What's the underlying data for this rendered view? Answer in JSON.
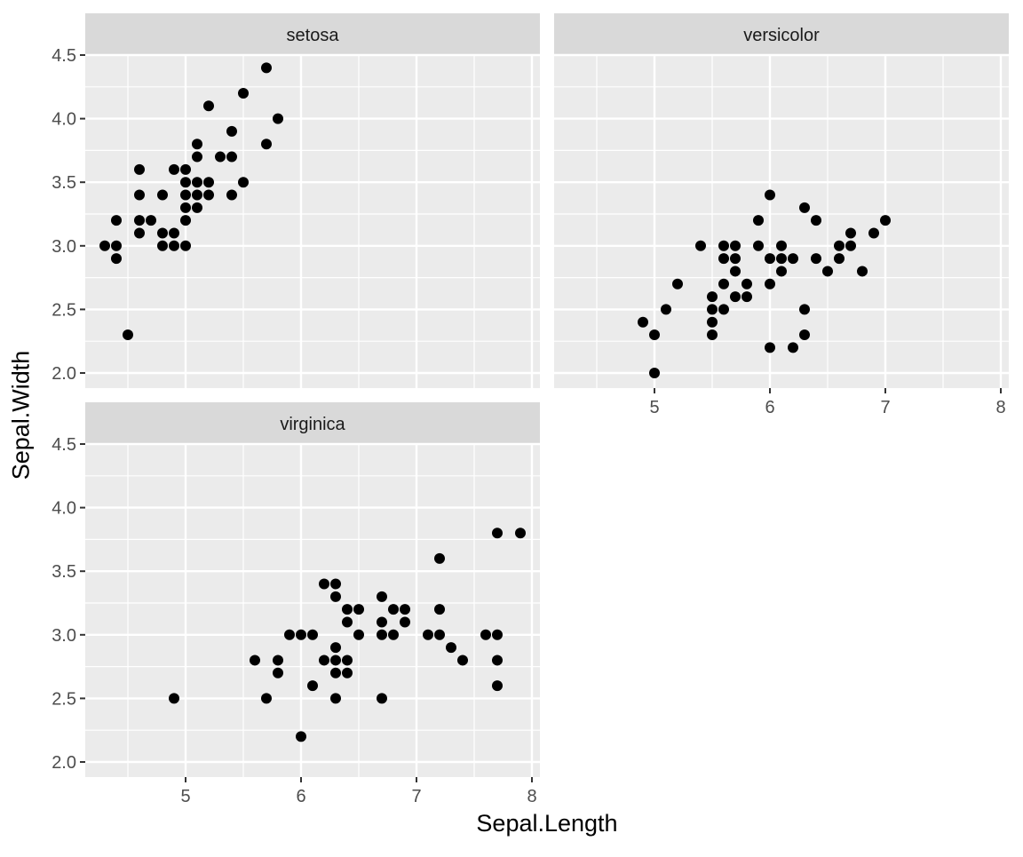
{
  "chart_data": {
    "type": "scatter",
    "title": "",
    "xlabel": "Sepal.Length",
    "ylabel": "Sepal.Width",
    "facet_by": "Species",
    "xlim": [
      4.13,
      8.07
    ],
    "ylim": [
      1.88,
      4.52
    ],
    "x_ticks": [
      5,
      6,
      7,
      8
    ],
    "y_ticks": [
      "2.0",
      "2.5",
      "3.0",
      "3.5",
      "4.0",
      "4.5"
    ],
    "grid": true,
    "point_color": "#000000",
    "panels": [
      {
        "strip": "setosa",
        "points": [
          [
            4.3,
            3.0
          ],
          [
            4.4,
            3.0
          ],
          [
            4.4,
            2.9
          ],
          [
            4.4,
            3.2
          ],
          [
            4.5,
            2.3
          ],
          [
            4.6,
            3.6
          ],
          [
            4.6,
            3.4
          ],
          [
            4.6,
            3.2
          ],
          [
            4.6,
            3.1
          ],
          [
            4.7,
            3.2
          ],
          [
            4.8,
            3.4
          ],
          [
            4.8,
            3.1
          ],
          [
            4.8,
            3.0
          ],
          [
            4.9,
            3.6
          ],
          [
            4.9,
            3.1
          ],
          [
            4.9,
            3.0
          ],
          [
            5.0,
            3.6
          ],
          [
            5.0,
            3.5
          ],
          [
            5.0,
            3.4
          ],
          [
            5.0,
            3.3
          ],
          [
            5.0,
            3.2
          ],
          [
            5.0,
            3.0
          ],
          [
            5.1,
            3.8
          ],
          [
            5.1,
            3.7
          ],
          [
            5.1,
            3.5
          ],
          [
            5.1,
            3.4
          ],
          [
            5.1,
            3.3
          ],
          [
            5.2,
            4.1
          ],
          [
            5.2,
            3.5
          ],
          [
            5.2,
            3.4
          ],
          [
            5.3,
            3.7
          ],
          [
            5.4,
            3.9
          ],
          [
            5.4,
            3.7
          ],
          [
            5.4,
            3.4
          ],
          [
            5.5,
            4.2
          ],
          [
            5.5,
            3.5
          ],
          [
            5.7,
            4.4
          ],
          [
            5.7,
            3.8
          ],
          [
            5.8,
            4.0
          ]
        ]
      },
      {
        "strip": "versicolor",
        "points": [
          [
            4.9,
            2.4
          ],
          [
            5.0,
            2.3
          ],
          [
            5.0,
            2.0
          ],
          [
            5.1,
            2.5
          ],
          [
            5.2,
            2.7
          ],
          [
            5.4,
            3.0
          ],
          [
            5.5,
            2.6
          ],
          [
            5.5,
            2.5
          ],
          [
            5.5,
            2.4
          ],
          [
            5.5,
            2.3
          ],
          [
            5.6,
            3.0
          ],
          [
            5.6,
            2.9
          ],
          [
            5.6,
            2.7
          ],
          [
            5.6,
            2.5
          ],
          [
            5.7,
            3.0
          ],
          [
            5.7,
            2.9
          ],
          [
            5.7,
            2.8
          ],
          [
            5.7,
            2.6
          ],
          [
            5.8,
            2.7
          ],
          [
            5.8,
            2.6
          ],
          [
            5.9,
            3.2
          ],
          [
            5.9,
            3.0
          ],
          [
            6.0,
            3.4
          ],
          [
            6.0,
            2.9
          ],
          [
            6.0,
            2.7
          ],
          [
            6.0,
            2.2
          ],
          [
            6.1,
            3.0
          ],
          [
            6.1,
            2.9
          ],
          [
            6.1,
            2.8
          ],
          [
            6.2,
            2.9
          ],
          [
            6.2,
            2.2
          ],
          [
            6.3,
            3.3
          ],
          [
            6.3,
            2.5
          ],
          [
            6.3,
            2.3
          ],
          [
            6.4,
            3.2
          ],
          [
            6.4,
            2.9
          ],
          [
            6.5,
            2.8
          ],
          [
            6.6,
            3.0
          ],
          [
            6.6,
            2.9
          ],
          [
            6.7,
            3.1
          ],
          [
            6.7,
            3.0
          ],
          [
            6.8,
            2.8
          ],
          [
            6.9,
            3.1
          ],
          [
            7.0,
            3.2
          ]
        ]
      },
      {
        "strip": "virginica",
        "points": [
          [
            4.9,
            2.5
          ],
          [
            5.6,
            2.8
          ],
          [
            5.7,
            2.5
          ],
          [
            5.8,
            2.8
          ],
          [
            5.8,
            2.7
          ],
          [
            5.9,
            3.0
          ],
          [
            6.0,
            3.0
          ],
          [
            6.0,
            2.2
          ],
          [
            6.1,
            3.0
          ],
          [
            6.1,
            2.6
          ],
          [
            6.2,
            3.4
          ],
          [
            6.2,
            2.8
          ],
          [
            6.3,
            3.4
          ],
          [
            6.3,
            3.3
          ],
          [
            6.3,
            2.9
          ],
          [
            6.3,
            2.8
          ],
          [
            6.3,
            2.7
          ],
          [
            6.3,
            2.5
          ],
          [
            6.4,
            3.2
          ],
          [
            6.4,
            3.1
          ],
          [
            6.4,
            2.8
          ],
          [
            6.4,
            2.7
          ],
          [
            6.5,
            3.2
          ],
          [
            6.5,
            3.0
          ],
          [
            6.7,
            3.3
          ],
          [
            6.7,
            3.1
          ],
          [
            6.7,
            3.0
          ],
          [
            6.7,
            2.5
          ],
          [
            6.8,
            3.2
          ],
          [
            6.8,
            3.0
          ],
          [
            6.9,
            3.2
          ],
          [
            6.9,
            3.1
          ],
          [
            7.1,
            3.0
          ],
          [
            7.2,
            3.6
          ],
          [
            7.2,
            3.2
          ],
          [
            7.2,
            3.0
          ],
          [
            7.3,
            2.9
          ],
          [
            7.4,
            2.8
          ],
          [
            7.6,
            3.0
          ],
          [
            7.7,
            3.8
          ],
          [
            7.7,
            3.0
          ],
          [
            7.7,
            2.8
          ],
          [
            7.7,
            2.6
          ],
          [
            7.9,
            3.8
          ]
        ]
      }
    ]
  },
  "theme": {
    "panel_bg": "#EBEBEB",
    "strip_bg": "#D9D9D9",
    "grid_color": "#FFFFFF",
    "tick_text": "#4D4D4D",
    "text": "#1A1A1A"
  }
}
